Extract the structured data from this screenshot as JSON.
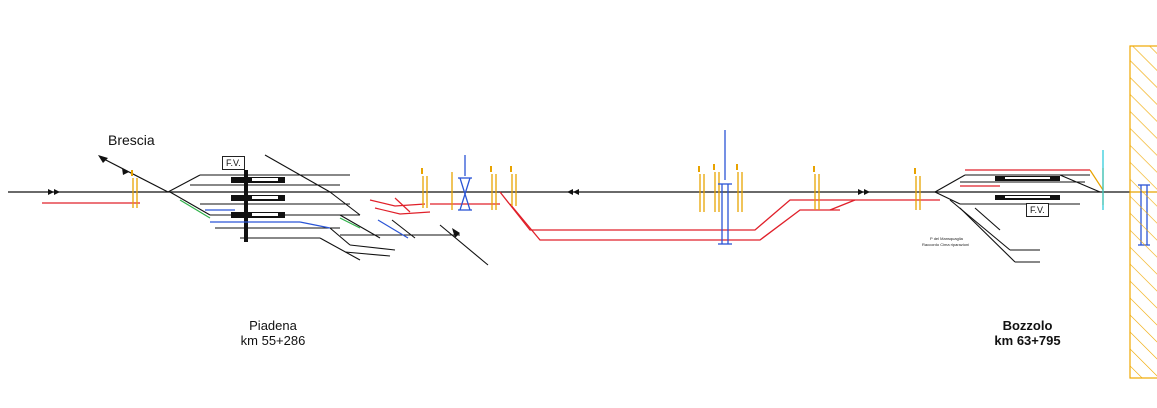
{
  "direction": {
    "label": "Brescia"
  },
  "stations": [
    {
      "name": "Piadena",
      "km": "km 55+286",
      "building": "F.V."
    },
    {
      "name": "Bozzolo",
      "km": "km 63+795",
      "building": "F.V."
    }
  ],
  "small_labels": {
    "bozzolo_siding_1": "P del Mansquaglia",
    "bozzolo_siding_2": "Raccordo Cima riparazioni"
  },
  "colors": {
    "main_line": "#111111",
    "red_track": "#e0202a",
    "blue_track": "#2b55d6",
    "green_track": "#2fb24a",
    "signal": "#e8a300",
    "hatch": "#f0a800",
    "cyan": "#22c8d8"
  }
}
